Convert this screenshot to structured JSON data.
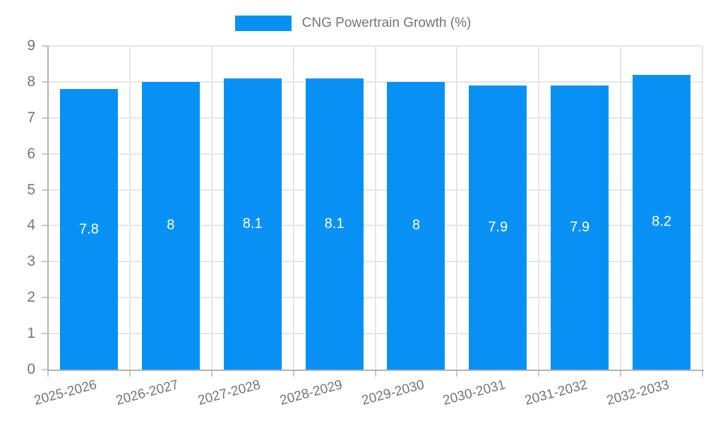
{
  "chart_data": {
    "type": "bar",
    "title": "",
    "legend": {
      "position": "top",
      "label": "CNG Powertrain Growth (%)"
    },
    "categories": [
      "2025-2026",
      "2026-2027",
      "2027-2028",
      "2028-2029",
      "2029-2030",
      "2030-2031",
      "2031-2032",
      "2032-2033"
    ],
    "values": [
      7.8,
      8,
      8.1,
      8.1,
      8,
      7.9,
      7.9,
      8.2
    ],
    "value_labels": [
      "7.8",
      "8",
      "8.1",
      "8.1",
      "8",
      "7.9",
      "7.9",
      "8.2"
    ],
    "ylim": [
      0,
      9
    ],
    "y_ticks": [
      "0",
      "1",
      "2",
      "3",
      "4",
      "5",
      "6",
      "7",
      "8",
      "9"
    ],
    "grid": true,
    "x_label_rotation_deg": -15,
    "colors": {
      "bar": "#0891F5",
      "grid": "#e6e6e6",
      "axis": "#b3b3b3",
      "tick": "#c9c9c9",
      "text": "#757575",
      "value_label": "#ffffff",
      "background": "#ffffff"
    }
  }
}
